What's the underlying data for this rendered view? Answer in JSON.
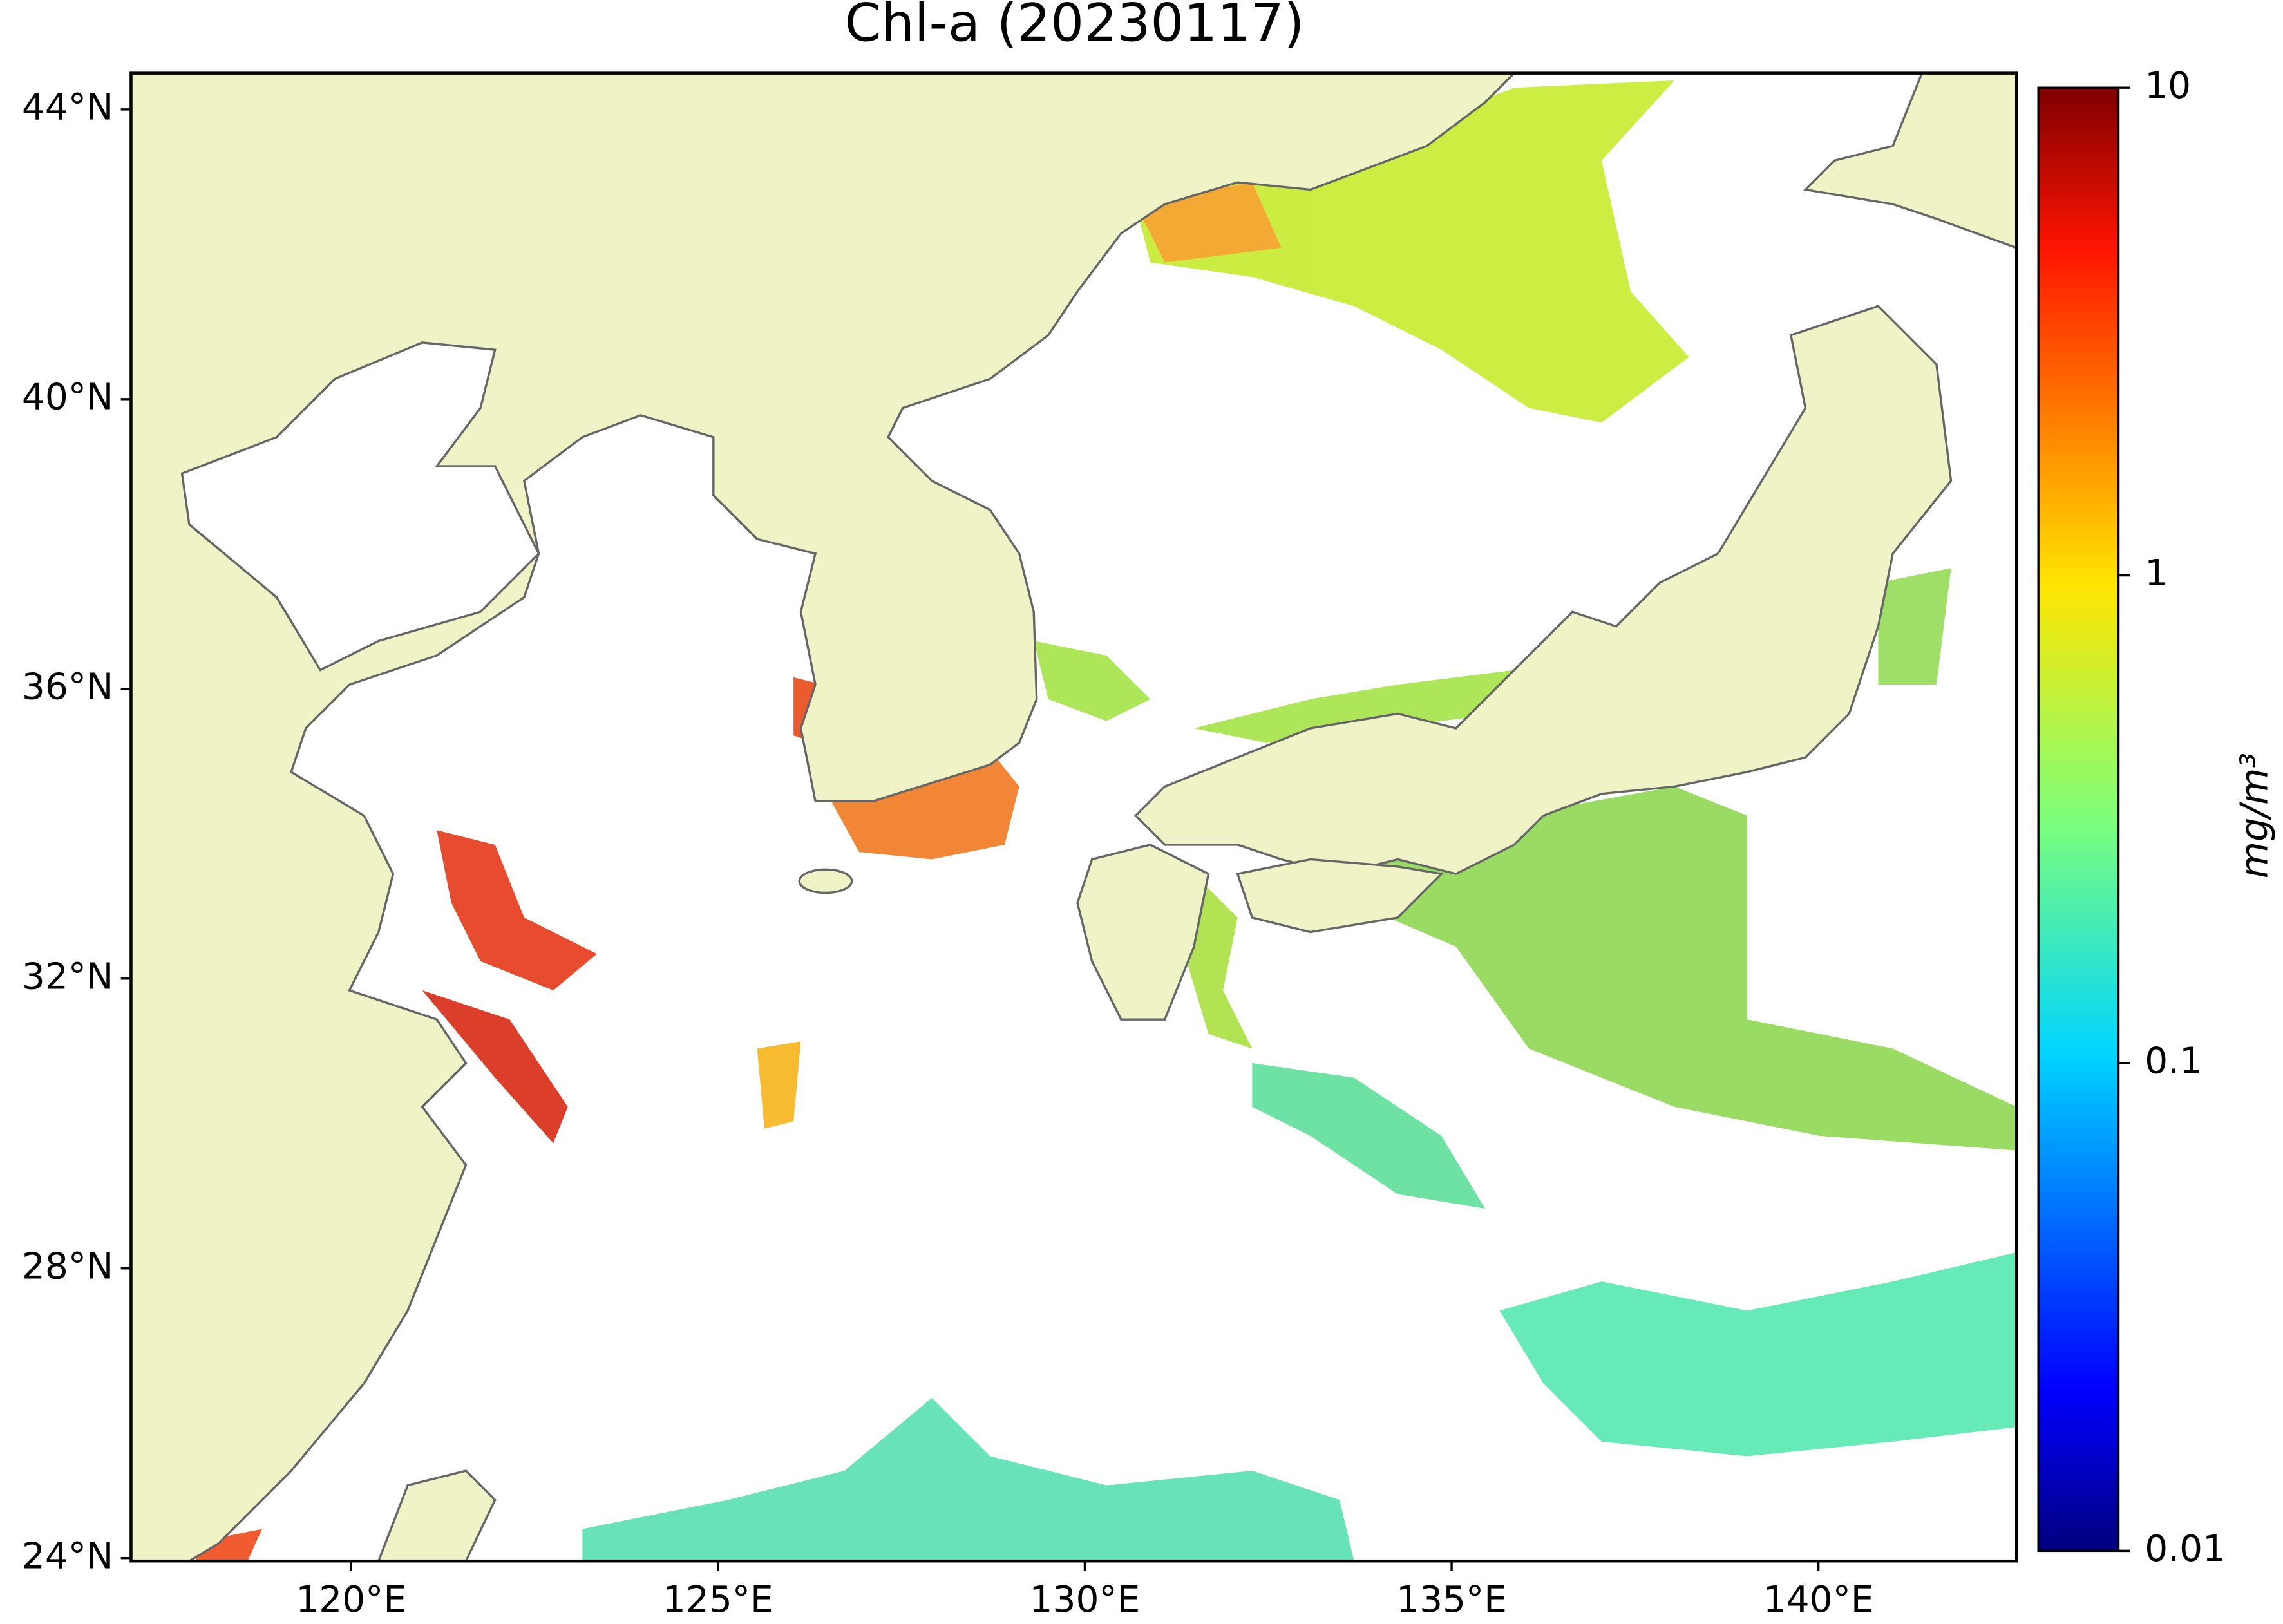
{
  "chart_data": {
    "type": "map",
    "title": "Chl-a (20230117)",
    "xlim": [
      117,
      142.7
    ],
    "ylim": [
      23.96,
      44.5
    ],
    "xticks": [
      {
        "value": 120,
        "label": "120°E"
      },
      {
        "value": 125,
        "label": "125°E"
      },
      {
        "value": 130,
        "label": "130°E"
      },
      {
        "value": 135,
        "label": "135°E"
      },
      {
        "value": 140,
        "label": "140°E"
      }
    ],
    "yticks": [
      {
        "value": 24,
        "label": "24°N"
      },
      {
        "value": 28,
        "label": "28°N"
      },
      {
        "value": 32,
        "label": "32°N"
      },
      {
        "value": 36,
        "label": "36°N"
      },
      {
        "value": 40,
        "label": "40°N"
      },
      {
        "value": 44,
        "label": "44°N"
      }
    ],
    "colorbar": {
      "label": "mg/m³",
      "scale": "log",
      "lim": [
        0.01,
        10
      ],
      "ticks": [
        0.01,
        0.1,
        1,
        10
      ]
    }
  }
}
